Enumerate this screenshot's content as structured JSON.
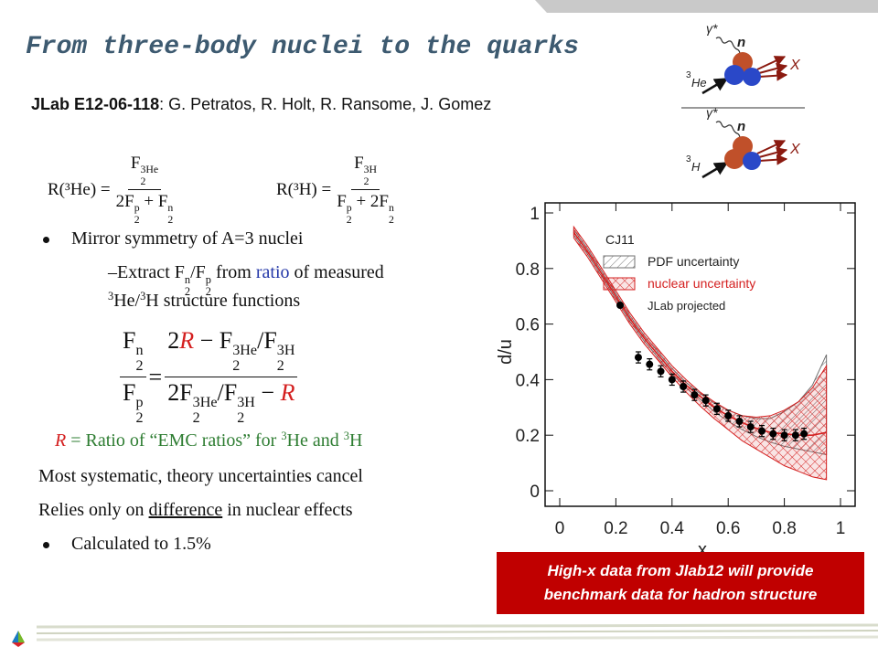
{
  "title": "From three-body nuclei to the quarks",
  "experiment": {
    "id": "JLab E12-06-118",
    "authors": ": G. Petratos, R. Holt, R. Ransome, J. Gomez"
  },
  "equations": [
    [
      "R(³He) = ",
      {
        "frac": [
          [
            {
              "t": "F",
              "sub": "2",
              "sup": "3He"
            }
          ],
          [
            {
              "t": "2F",
              "sub": "2",
              "sup": "p"
            },
            " + ",
            {
              "t": "F",
              "sub": "2",
              "sup": "n"
            }
          ]
        ]
      }
    ],
    [
      "R(³H) = ",
      {
        "frac": [
          [
            {
              "t": "F",
              "sub": "2",
              "sup": "3H"
            }
          ],
          [
            {
              "t": "F",
              "sub": "2",
              "sup": "p"
            },
            " + ",
            {
              "t": "2F",
              "sub": "2",
              "sup": "n"
            }
          ]
        ]
      }
    ]
  ],
  "lines": [
    {
      "bullet": true,
      "tokens": [
        "Mirror symmetry of A=3 nuclei"
      ]
    },
    {
      "tokens": [
        "–Extract ",
        {
          "t": "F",
          "sub": "2",
          "sup": "n"
        },
        "/",
        {
          "t": "F",
          "sub": "2",
          "sup": "p"
        },
        " from ",
        {
          "t": "ratio",
          "color": "#2438a8"
        },
        " of measured"
      ]
    },
    {
      "tokens": [
        {
          "sup": "3"
        },
        "He/",
        {
          "sup": "3"
        },
        "H structure functions"
      ]
    },
    {
      "tokens": [
        {
          "frac": [
            [
              {
                "t": "F",
                "sub": "2",
                "sup": "n"
              }
            ],
            [
              {
                "t": "F",
                "sub": "2",
                "sup": "p"
              }
            ]
          ]
        },
        " = ",
        {
          "frac": [
            [
              "2",
              {
                "t": "R",
                "color": "#d42020",
                "italic": true
              },
              " − ",
              {
                "t": "F",
                "sub": "2",
                "sup": "3He"
              },
              "/",
              {
                "t": "F",
                "sub": "2",
                "sup": "3H"
              }
            ],
            [
              "2",
              {
                "t": "F",
                "sub": "2",
                "sup": "3He"
              },
              "/",
              {
                "t": "F",
                "sub": "2",
                "sup": "3H"
              },
              " − ",
              {
                "t": "R",
                "color": "#d42020",
                "italic": true
              }
            ]
          ]
        }
      ]
    },
    {
      "color": "#2e7d32",
      "tokens": [
        {
          "t": "R",
          "color": "#d42020",
          "italic": true
        },
        " = Ratio of “EMC ratios” for ",
        {
          "sup": "3"
        },
        "He and ",
        {
          "sup": "3"
        },
        "H"
      ]
    },
    {
      "tokens": [
        "Most systematic, theory uncertainties cancel"
      ]
    },
    {
      "tokens": [
        "Relies only on ",
        {
          "t": "difference",
          "underline": true
        },
        " in nuclear effects"
      ]
    },
    {
      "bullet": true,
      "tokens": [
        "Calculated to 1.5%"
      ]
    }
  ],
  "caption": [
    "High-x data from Jlab12 will provide",
    "benchmark data for hadron structure"
  ],
  "diagram": [
    {
      "photon": "γ*",
      "nucleon": "n",
      "out": "X",
      "target_sup": "3",
      "target": "He"
    },
    {
      "photon": "γ*",
      "nucleon": "n",
      "out": "X",
      "target_sup": "3",
      "target": "H"
    }
  ],
  "chart_data": {
    "type": "line",
    "xlabel": "x",
    "ylabel": "d/u",
    "xlim": [
      0,
      1
    ],
    "ylim": [
      0,
      1
    ],
    "xticks": [
      0,
      0.2,
      0.4,
      0.6,
      0.8,
      1
    ],
    "yticks": [
      0,
      0.2,
      0.4,
      0.6,
      0.8,
      1
    ],
    "legend_title": "CJ11",
    "curve_x": [
      0.05,
      0.1,
      0.15,
      0.2,
      0.25,
      0.3,
      0.35,
      0.4,
      0.45,
      0.5,
      0.55,
      0.6,
      0.65,
      0.7,
      0.75,
      0.8,
      0.85,
      0.9,
      0.95
    ],
    "curve": {
      "color": "#d42020",
      "values": [
        0.93,
        0.86,
        0.78,
        0.7,
        0.62,
        0.55,
        0.49,
        0.43,
        0.38,
        0.34,
        0.3,
        0.27,
        0.245,
        0.225,
        0.21,
        0.205,
        0.2,
        0.2,
        0.21
      ]
    },
    "bands": [
      {
        "name": "PDF uncertainty",
        "color": "#707070",
        "upper": [
          0.94,
          0.87,
          0.79,
          0.71,
          0.63,
          0.56,
          0.5,
          0.44,
          0.39,
          0.35,
          0.315,
          0.29,
          0.27,
          0.26,
          0.26,
          0.285,
          0.32,
          0.38,
          0.49
        ],
        "lower": [
          0.92,
          0.85,
          0.77,
          0.69,
          0.61,
          0.54,
          0.48,
          0.42,
          0.37,
          0.33,
          0.285,
          0.25,
          0.22,
          0.195,
          0.175,
          0.16,
          0.15,
          0.14,
          0.13
        ]
      },
      {
        "name": "nuclear uncertainty",
        "color": "#d42020",
        "upper": [
          0.95,
          0.88,
          0.8,
          0.72,
          0.64,
          0.57,
          0.51,
          0.45,
          0.4,
          0.355,
          0.32,
          0.29,
          0.27,
          0.265,
          0.27,
          0.29,
          0.32,
          0.37,
          0.45
        ],
        "lower": [
          0.91,
          0.84,
          0.76,
          0.68,
          0.6,
          0.53,
          0.47,
          0.41,
          0.355,
          0.305,
          0.26,
          0.22,
          0.18,
          0.15,
          0.12,
          0.09,
          0.07,
          0.05,
          0.04
        ]
      }
    ],
    "series": [
      {
        "name": "JLab projected",
        "color": "#000000",
        "x": [
          0.28,
          0.32,
          0.36,
          0.4,
          0.44,
          0.48,
          0.52,
          0.56,
          0.6,
          0.64,
          0.68,
          0.72,
          0.76,
          0.8,
          0.84,
          0.87
        ],
        "values": [
          0.48,
          0.455,
          0.43,
          0.4,
          0.375,
          0.345,
          0.325,
          0.295,
          0.27,
          0.25,
          0.23,
          0.215,
          0.205,
          0.2,
          0.2,
          0.205
        ],
        "errors": [
          0.02,
          0.02,
          0.02,
          0.02,
          0.02,
          0.02,
          0.02,
          0.02,
          0.02,
          0.02,
          0.02,
          0.02,
          0.02,
          0.02,
          0.02,
          0.02
        ]
      }
    ]
  }
}
